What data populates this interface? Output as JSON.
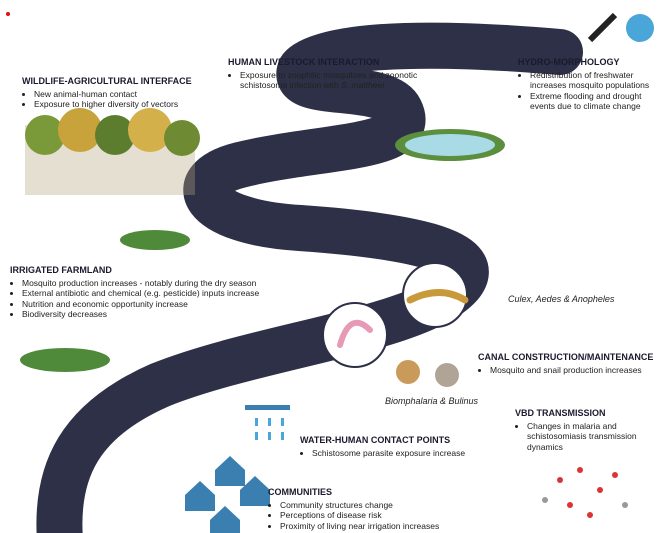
{
  "sections": [
    {
      "title": "WILDLIFE-AGRICULTURAL INTERFACE",
      "bullets": [
        "New animal-human contact",
        "Exposure to higher diversity of vectors"
      ]
    },
    {
      "title": "HUMAN LIVESTOCK INTERACTION",
      "bullets": [
        {
          "text": "Exposure to zoophilic mosquitoes and zoonotic schistosome infection with ",
          "emphasis": "S. mattheei"
        }
      ]
    },
    {
      "title": "HYDRO-MORPHOLOGY",
      "bullets": [
        "Redistribution of freshwater increases mosquito populations",
        "Extreme flooding and drought events due to climate change"
      ]
    },
    {
      "title": "IRRIGATED FARMLAND",
      "bullets": [
        "Mosquito production increases - notably during the dry season",
        "External antibiotic and chemical (e.g. pesticide) inputs increase",
        "Nutrition and economic opportunity increase",
        "Biodiversity decreases"
      ]
    },
    {
      "title": "CANAL CONSTRUCTION/MAINTENANCE",
      "bullets": [
        "Mosquito and snail production increases"
      ]
    },
    {
      "title": "VBD TRANSMISSION",
      "bullets": [
        "Changes in malaria and schistosomiasis transmission dynamics"
      ]
    },
    {
      "title": "WATER-HUMAN CONTACT POINTS",
      "bullets": [
        "Schistosome parasite exposure increase"
      ]
    },
    {
      "title": "COMMUNITIES",
      "bullets": [
        "Community structures change",
        "Perceptions of disease risk",
        "Proximity of living near irrigation increases"
      ]
    }
  ],
  "labels": {
    "vectors": "Culex, Aedes & Anopheles",
    "snails": "Biomphalaria & Bulinus"
  }
}
